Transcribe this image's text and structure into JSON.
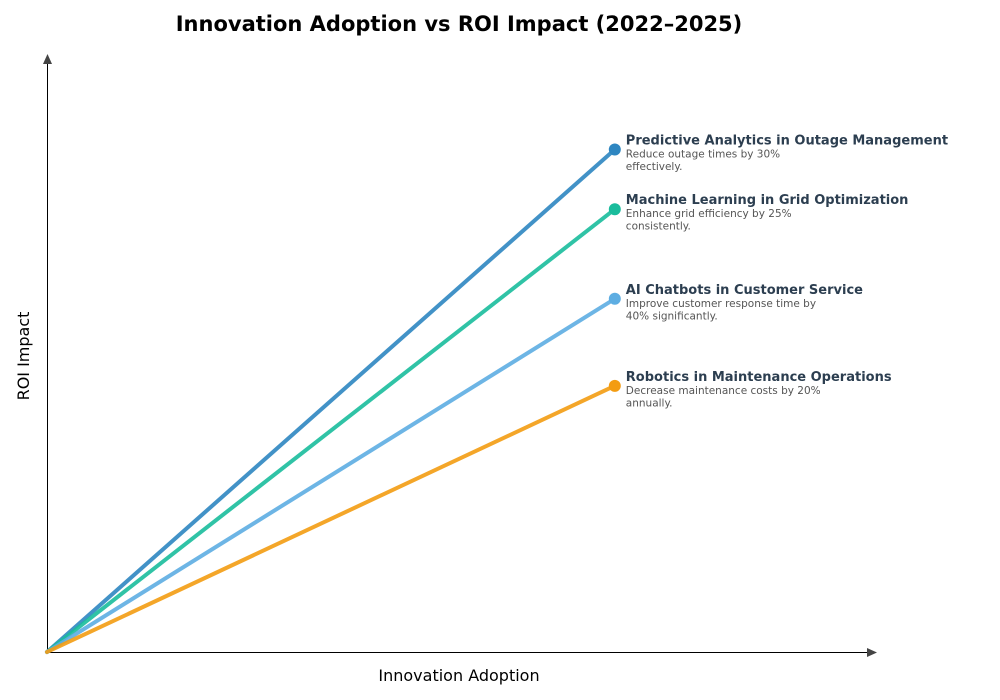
{
  "chart_data": {
    "type": "line",
    "title": "Innovation Adoption vs ROI Impact (2022–2025)",
    "xlabel": "Innovation Adoption",
    "ylabel": "ROI Impact",
    "xlim": [
      0,
      1.46
    ],
    "ylim": [
      0,
      1.2
    ],
    "grid": false,
    "ticks": false,
    "series": [
      {
        "name": "Predictive Analytics in Outage Management",
        "desc": [
          "Reduce outage times by 30%",
          "effectively."
        ],
        "x": [
          0,
          1
        ],
        "y": [
          0,
          1.01
        ],
        "color": "#2e86c1"
      },
      {
        "name": "Machine Learning in Grid Optimization",
        "desc": [
          "Enhance grid efficiency by 25%",
          "consistently."
        ],
        "x": [
          0,
          1
        ],
        "y": [
          0,
          0.89
        ],
        "color": "#1abc9c"
      },
      {
        "name": "AI Chatbots in Customer Service",
        "desc": [
          "Improve customer response time by",
          "40% significantly."
        ],
        "x": [
          0,
          1
        ],
        "y": [
          0,
          0.71
        ],
        "color": "#5dade2"
      },
      {
        "name": "Robotics in Maintenance Operations",
        "desc": [
          "Decrease maintenance costs by 20%",
          "annually."
        ],
        "x": [
          0,
          1
        ],
        "y": [
          0,
          0.535
        ],
        "color": "#f39c12"
      }
    ]
  }
}
